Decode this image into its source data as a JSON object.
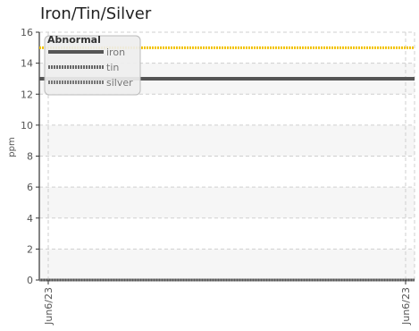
{
  "chart_data": {
    "type": "line",
    "title": "Iron/Tin/Silver",
    "xlabel": "",
    "ylabel": "ppm",
    "x": [
      "Jun6/23",
      "Jun6/23"
    ],
    "ylim": [
      0,
      16
    ],
    "yticks": [
      0,
      2,
      4,
      6,
      8,
      10,
      12,
      14,
      16
    ],
    "grid": true,
    "legend_position": "top-left",
    "legend_title": "Abnormal",
    "series": [
      {
        "name": "iron",
        "values": [
          0,
          0
        ],
        "color": "#555555",
        "style": "solid"
      },
      {
        "name": "tin",
        "values": [
          0,
          0
        ],
        "color": "#666666",
        "style": "dotted"
      },
      {
        "name": "silver",
        "values": [
          0,
          0
        ],
        "color": "#777777",
        "style": "dotted"
      }
    ],
    "thresholds": [
      {
        "value": 15,
        "color": "#f2c300",
        "style": "dotted"
      },
      {
        "value": 13,
        "color": "#555555",
        "style": "solid"
      }
    ],
    "bands": [
      {
        "from": 0,
        "to": 2,
        "color": "#f6f6f6"
      },
      {
        "from": 4,
        "to": 6,
        "color": "#f6f6f6"
      },
      {
        "from": 8,
        "to": 10,
        "color": "#f6f6f6"
      },
      {
        "from": 12,
        "to": 14,
        "color": "#f6f6f6"
      }
    ]
  }
}
